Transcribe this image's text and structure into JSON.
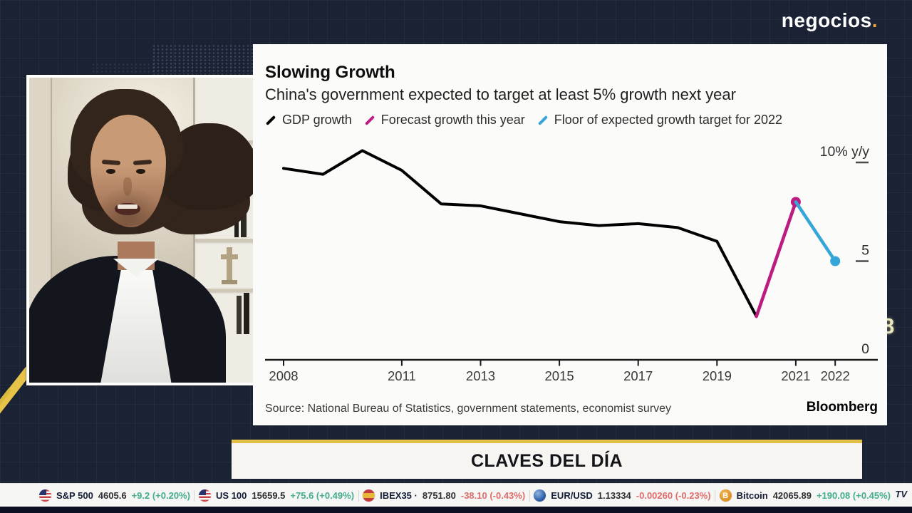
{
  "brand": {
    "name": "negocios",
    "dot": "."
  },
  "background": {
    "partial_number": "8"
  },
  "chart_panel": {
    "title": "Slowing Growth",
    "subtitle": "China's government expected to target at least 5% growth next year",
    "source": "Source: National Bureau of Statistics, government statements, economist survey",
    "attribution": "Bloomberg"
  },
  "chart_data": {
    "type": "line",
    "title": "Slowing Growth",
    "subtitle": "China's government expected to target at least 5% growth next year",
    "unit": "% y/y",
    "xlim": [
      2007.5,
      2023
    ],
    "ylim": [
      0,
      11
    ],
    "grid": false,
    "legend_position": "top",
    "xticks": [
      2008,
      2011,
      2013,
      2015,
      2017,
      2019,
      2021,
      2022
    ],
    "yticks": [
      {
        "label": "10% y/y",
        "value": 10,
        "dash": true
      },
      {
        "label": "5",
        "value": 5,
        "dash": true
      },
      {
        "label": "0",
        "value": 0,
        "dash": false
      }
    ],
    "series": [
      {
        "name": "GDP growth",
        "color": "#000000",
        "marker": "none",
        "points": [
          [
            2008,
            9.7
          ],
          [
            2009,
            9.4
          ],
          [
            2010,
            10.6
          ],
          [
            2011,
            9.6
          ],
          [
            2012,
            7.9
          ],
          [
            2013,
            7.8
          ],
          [
            2014,
            7.4
          ],
          [
            2015,
            7.0
          ],
          [
            2016,
            6.8
          ],
          [
            2017,
            6.9
          ],
          [
            2018,
            6.7
          ],
          [
            2019,
            6.0
          ],
          [
            2020,
            2.2
          ]
        ]
      },
      {
        "name": "Forecast growth this year",
        "color": "#bc1b80",
        "marker": "end",
        "points": [
          [
            2020,
            2.2
          ],
          [
            2021,
            8.0
          ]
        ]
      },
      {
        "name": "Floor of expected growth target for 2022",
        "color": "#36a5d8",
        "marker": "end",
        "points": [
          [
            2021,
            8.0
          ],
          [
            2022,
            5.0
          ]
        ]
      }
    ]
  },
  "banner": {
    "text": "CLAVES DEL DÍA"
  },
  "ticker": {
    "watermark": "TV",
    "bitcoin_symbol": "B",
    "items": [
      {
        "icon": "us-flag",
        "name": "S&P 500",
        "value": "4605.6",
        "change": "+9.2 (+0.20%)",
        "change_color": "#43ad8c"
      },
      {
        "icon": "us-flag",
        "name": "US 100",
        "value": "15659.5",
        "change": "+75.6 (+0.49%)",
        "change_color": "#43ad8c"
      },
      {
        "icon": "spain-flag",
        "name": "IBEX35 ·",
        "value": "8751.80",
        "change": "-38.10 (-0.43%)",
        "change_color": "#e06c6c"
      },
      {
        "icon": "globe",
        "name": "EUR/USD",
        "value": "1.13334",
        "change": "-0.00260 (-0.23%)",
        "change_color": "#e06c6c"
      },
      {
        "icon": "bitcoin",
        "name": "Bitcoin",
        "value": "42065.89",
        "change": "+190.08 (+0.45%)",
        "change_color": "#43ad8c"
      }
    ]
  }
}
